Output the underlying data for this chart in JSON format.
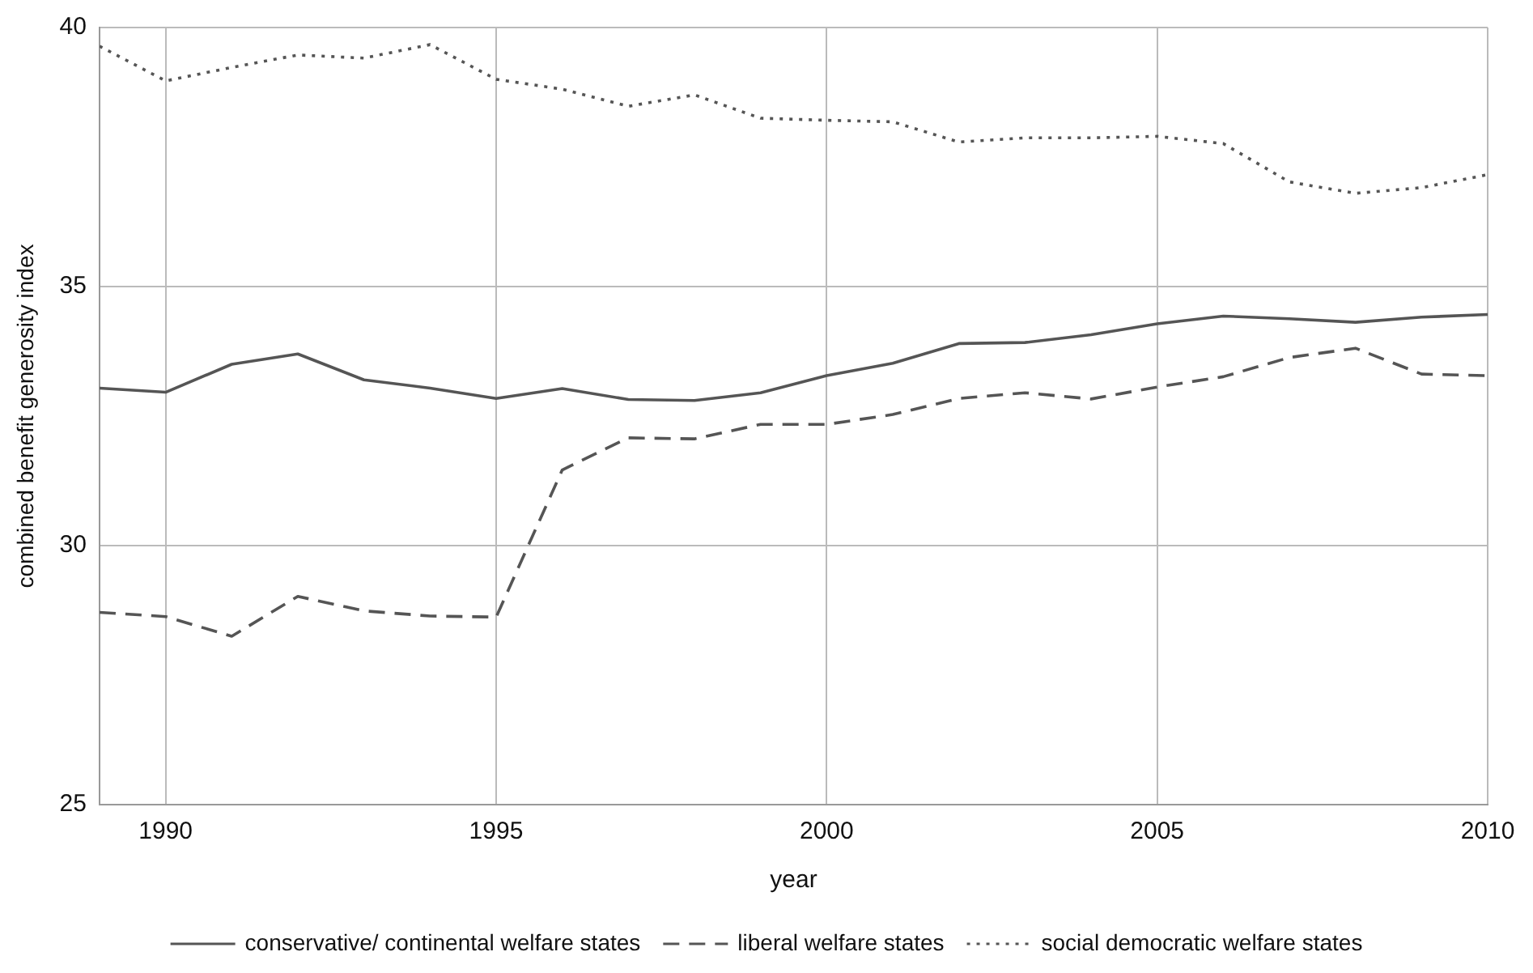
{
  "chart_data": {
    "type": "line",
    "xlabel": "year",
    "ylabel": "combined benefit generosity index",
    "x": [
      1989,
      1990,
      1991,
      1992,
      1993,
      1994,
      1995,
      1996,
      1997,
      1998,
      1999,
      2000,
      2001,
      2002,
      2003,
      2004,
      2005,
      2006,
      2007,
      2008,
      2009,
      2010
    ],
    "series": [
      {
        "name": "conservative/ continental welfare states",
        "color": "#555555",
        "line_style": "solid",
        "values": [
          33.04,
          32.96,
          33.5,
          33.7,
          33.2,
          33.04,
          32.84,
          33.03,
          32.82,
          32.8,
          32.95,
          33.28,
          33.52,
          33.9,
          33.92,
          34.07,
          34.28,
          34.43,
          34.38,
          34.31,
          34.41,
          34.46
        ]
      },
      {
        "name": "liberal welfare states",
        "color": "#555555",
        "line_style": "dashed",
        "values": [
          28.71,
          28.63,
          28.25,
          29.02,
          28.74,
          28.64,
          28.62,
          31.46,
          32.08,
          32.06,
          32.34,
          32.34,
          32.53,
          32.84,
          32.95,
          32.83,
          33.06,
          33.26,
          33.63,
          33.81,
          33.31,
          33.28
        ]
      },
      {
        "name": "social democratic welfare states",
        "color": "#555555",
        "line_style": "dotted",
        "values": [
          39.64,
          38.97,
          39.23,
          39.47,
          39.41,
          39.67,
          39.0,
          38.81,
          38.48,
          38.7,
          38.25,
          38.21,
          38.18,
          37.79,
          37.87,
          37.87,
          37.9,
          37.76,
          37.02,
          36.8,
          36.91,
          37.16
        ]
      }
    ],
    "xlim": [
      1989,
      2010
    ],
    "xticks": [
      1990,
      1995,
      2000,
      2005,
      2010
    ],
    "ylim": [
      25,
      40
    ],
    "yticks": [
      25,
      30,
      35,
      40
    ],
    "grid": true,
    "legend": "bottom",
    "marker": "none"
  }
}
